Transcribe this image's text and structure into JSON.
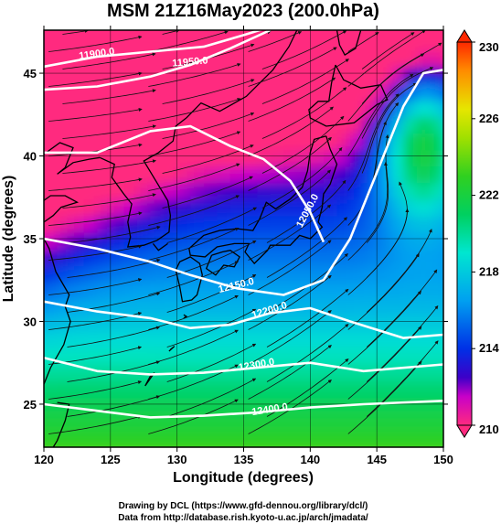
{
  "chart_data": {
    "type": "heatmap",
    "title": "MSM 21Z16May2023 (200.0hPa)",
    "xlabel": "Longitude (degrees)",
    "ylabel": "Latitude  (degrees)",
    "xlim": [
      120,
      150
    ],
    "ylim": [
      22.4,
      47.6
    ],
    "x_ticks": [
      "120",
      "125",
      "130",
      "135",
      "140",
      "145",
      "150"
    ],
    "y_ticks": [
      "25",
      "30",
      "35",
      "40",
      "45"
    ],
    "x_tick_values": [
      120,
      125,
      130,
      135,
      140,
      145,
      150
    ],
    "y_tick_values": [
      25,
      30,
      35,
      40,
      45
    ],
    "grid": true,
    "colorbar": {
      "min": 210,
      "max": 230,
      "labels": [
        "230",
        "226",
        "222",
        "218",
        "214",
        "210"
      ],
      "label_values": [
        230,
        226,
        222,
        218,
        214,
        210
      ],
      "colors": [
        "#ff2a7f",
        "#c800c8",
        "#3c00c8",
        "#0030e6",
        "#00a0f0",
        "#00e6d0",
        "#00d060",
        "#30d020",
        "#a0e000",
        "#e6e600",
        "#ff8c00",
        "#ff2800"
      ],
      "color_stops": [
        210,
        211.5,
        212.5,
        214,
        216.5,
        219,
        221,
        223,
        225,
        226.5,
        228.5,
        230
      ]
    },
    "contours": [
      {
        "label": "11900.0",
        "label_lon": 124,
        "label_lat": 46.0,
        "label_angle": -8
      },
      {
        "label": "11950.0",
        "label_lon": 131,
        "label_lat": 45.5,
        "label_angle": -5
      },
      {
        "label": "12050.0",
        "label_lon": 140,
        "label_lat": 36.6,
        "label_angle": -62
      },
      {
        "label": "12150.0",
        "label_lon": 134.5,
        "label_lat": 32.0,
        "label_angle": -14
      },
      {
        "label": "12200.0",
        "label_lon": 137,
        "label_lat": 30.5,
        "label_angle": -17
      },
      {
        "label": "12300.0",
        "label_lon": 136,
        "label_lat": 27.2,
        "label_angle": -10
      },
      {
        "label": "12400.0",
        "label_lon": 137,
        "label_lat": 24.5,
        "label_angle": -9
      }
    ],
    "footer": [
      "Drawing by DCL (https://www.gfd-dennou.org/library/dcl/)",
      "Data from http://database.rish.kyoto-u.ac.jp/arch/jmadata/"
    ]
  }
}
